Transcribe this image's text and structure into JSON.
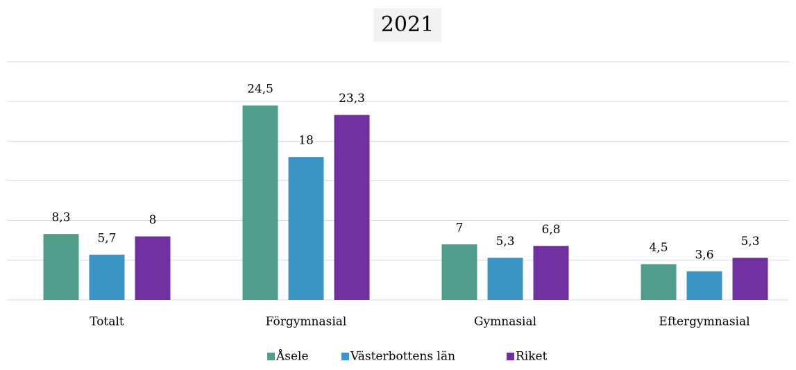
{
  "chart_data": {
    "type": "bar",
    "title": "2021",
    "categories": [
      "Totalt",
      "Förgymnasial",
      "Gymnasial",
      "Eftergymnasial"
    ],
    "series": [
      {
        "name": "Åsele",
        "color": "#4e9e8a",
        "values": [
          8.3,
          24.5,
          7,
          4.5
        ],
        "value_labels": [
          "8,3",
          "24,5",
          "7",
          "4,5"
        ]
      },
      {
        "name": "Västerbottens län",
        "color": "#3a94c6",
        "values": [
          5.7,
          18,
          5.3,
          3.6
        ],
        "value_labels": [
          "5,7",
          "18",
          "5,3",
          "3,6"
        ]
      },
      {
        "name": "Riket",
        "color": "#7030a0",
        "values": [
          8,
          23.3,
          6.8,
          5.3
        ],
        "value_labels": [
          "8",
          "23,3",
          "6,8",
          "5,3"
        ]
      }
    ],
    "ylim": [
      0,
      30
    ],
    "yticks": [
      0,
      5,
      10,
      15,
      20,
      25,
      30
    ],
    "grid": true,
    "legend": "bottom"
  }
}
